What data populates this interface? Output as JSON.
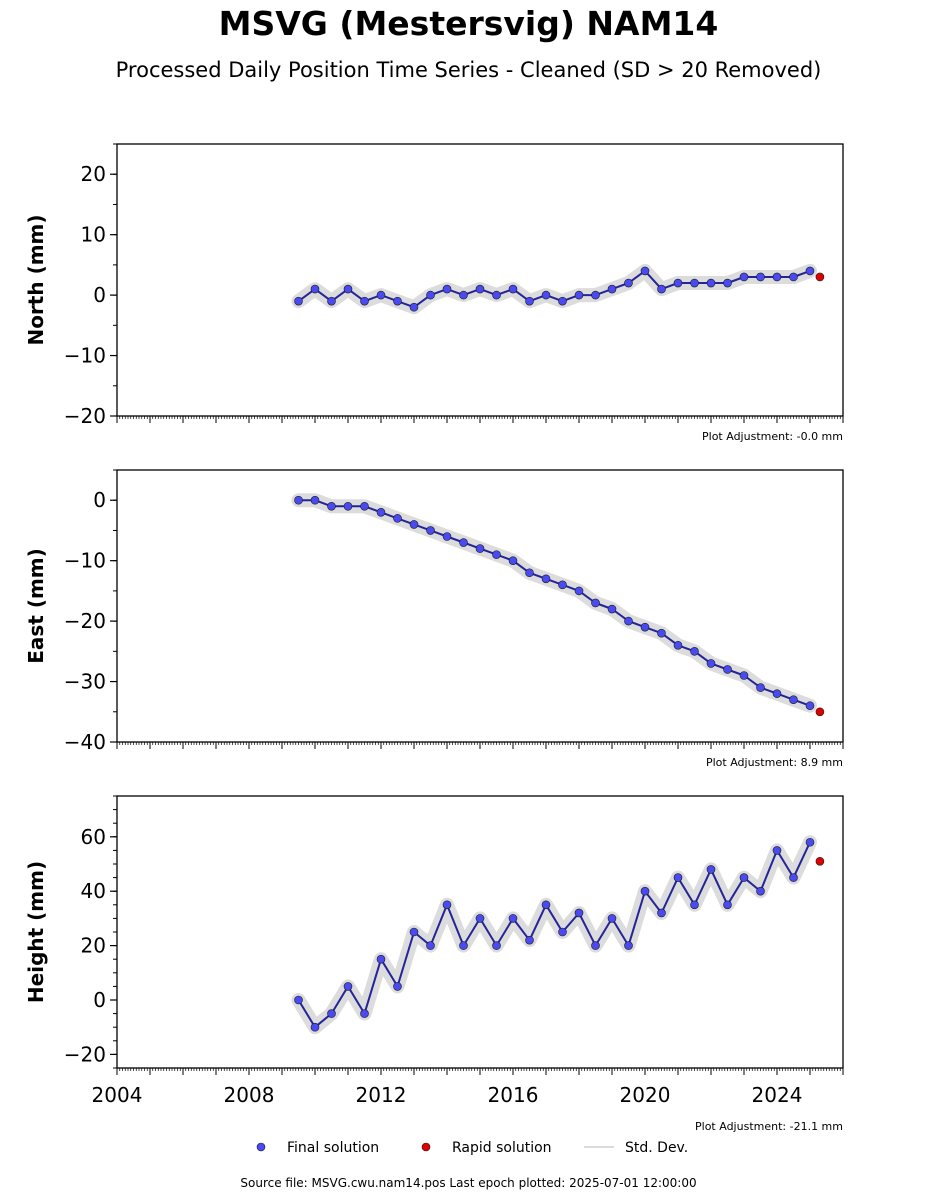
{
  "header": {
    "title": "MSVG (Mestersvig) NAM14",
    "subtitle": "Processed Daily Position Time Series - Cleaned (SD > 20 Removed)"
  },
  "colors": {
    "final": "#4a4af2",
    "rapid": "#e00000",
    "std": "#9a9a9a"
  },
  "chart_data": [
    {
      "type": "scatter",
      "ylabel": "North (mm)",
      "ylim": [
        -20,
        25
      ],
      "xlim": [
        2004,
        2026
      ],
      "yticks": [
        20,
        10,
        0,
        -10,
        -20
      ],
      "xticks": [],
      "adjustment": "Plot Adjustment: -0.0 mm",
      "series": [
        {
          "name": "Final solution",
          "x": [
            2009.5,
            2010.0,
            2010.5,
            2011.0,
            2011.5,
            2012.0,
            2012.5,
            2013.0,
            2013.5,
            2014.0,
            2014.5,
            2015.0,
            2015.5,
            2016.0,
            2016.5,
            2017.0,
            2017.5,
            2018.0,
            2018.5,
            2019.0,
            2019.5,
            2020.0,
            2020.5,
            2021.0,
            2021.5,
            2022.0,
            2022.5,
            2023.0,
            2023.5,
            2024.0,
            2024.5,
            2025.0
          ],
          "y": [
            -1,
            1,
            -1,
            1,
            -1,
            0,
            -1,
            -2,
            0,
            1,
            0,
            1,
            0,
            1,
            -1,
            0,
            -1,
            0,
            0,
            1,
            2,
            4,
            1,
            2,
            2,
            2,
            2,
            3,
            3,
            3,
            3,
            4
          ]
        },
        {
          "name": "Rapid solution",
          "x": [
            2025.3
          ],
          "y": [
            3
          ]
        }
      ]
    },
    {
      "type": "scatter",
      "ylabel": "East (mm)",
      "ylim": [
        -40,
        5
      ],
      "xlim": [
        2004,
        2026
      ],
      "yticks": [
        0,
        -10,
        -20,
        -30,
        -40
      ],
      "xticks": [],
      "adjustment": "Plot Adjustment: 8.9 mm",
      "series": [
        {
          "name": "Final solution",
          "x": [
            2009.5,
            2010.0,
            2010.5,
            2011.0,
            2011.5,
            2012.0,
            2012.5,
            2013.0,
            2013.5,
            2014.0,
            2014.5,
            2015.0,
            2015.5,
            2016.0,
            2016.5,
            2017.0,
            2017.5,
            2018.0,
            2018.5,
            2019.0,
            2019.5,
            2020.0,
            2020.5,
            2021.0,
            2021.5,
            2022.0,
            2022.5,
            2023.0,
            2023.5,
            2024.0,
            2024.5,
            2025.0
          ],
          "y": [
            0,
            0,
            -1,
            -1,
            -1,
            -2,
            -3,
            -4,
            -5,
            -6,
            -7,
            -8,
            -9,
            -10,
            -12,
            -13,
            -14,
            -15,
            -17,
            -18,
            -20,
            -21,
            -22,
            -24,
            -25,
            -27,
            -28,
            -29,
            -31,
            -32,
            -33,
            -34
          ]
        },
        {
          "name": "Rapid solution",
          "x": [
            2025.3
          ],
          "y": [
            -35
          ]
        }
      ]
    },
    {
      "type": "scatter",
      "ylabel": "Height (mm)",
      "ylim": [
        -25,
        75
      ],
      "xlim": [
        2004,
        2026
      ],
      "yticks": [
        60,
        40,
        20,
        0,
        -20
      ],
      "xticks": [
        "2004",
        "2008",
        "2012",
        "2016",
        "2020",
        "2024"
      ],
      "adjustment": "Plot Adjustment: -21.1 mm",
      "series": [
        {
          "name": "Final solution",
          "x": [
            2009.5,
            2010.0,
            2010.5,
            2011.0,
            2011.5,
            2012.0,
            2012.5,
            2013.0,
            2013.5,
            2014.0,
            2014.5,
            2015.0,
            2015.5,
            2016.0,
            2016.5,
            2017.0,
            2017.5,
            2018.0,
            2018.5,
            2019.0,
            2019.5,
            2020.0,
            2020.5,
            2021.0,
            2021.5,
            2022.0,
            2022.5,
            2023.0,
            2023.5,
            2024.0,
            2024.5,
            2025.0
          ],
          "y": [
            0,
            -10,
            -5,
            5,
            -5,
            15,
            5,
            25,
            20,
            35,
            20,
            30,
            20,
            30,
            22,
            35,
            25,
            32,
            20,
            30,
            20,
            40,
            32,
            45,
            35,
            48,
            35,
            45,
            40,
            55,
            45,
            58
          ]
        },
        {
          "name": "Rapid solution",
          "x": [
            2025.3
          ],
          "y": [
            51
          ]
        }
      ]
    }
  ],
  "legend": {
    "final": "Final solution",
    "rapid": "Rapid solution",
    "std": "Std. Dev."
  },
  "footer": {
    "source": "Source file: MSVG.cwu.nam14.pos  Last epoch plotted: 2025-07-01 12:00:00"
  }
}
